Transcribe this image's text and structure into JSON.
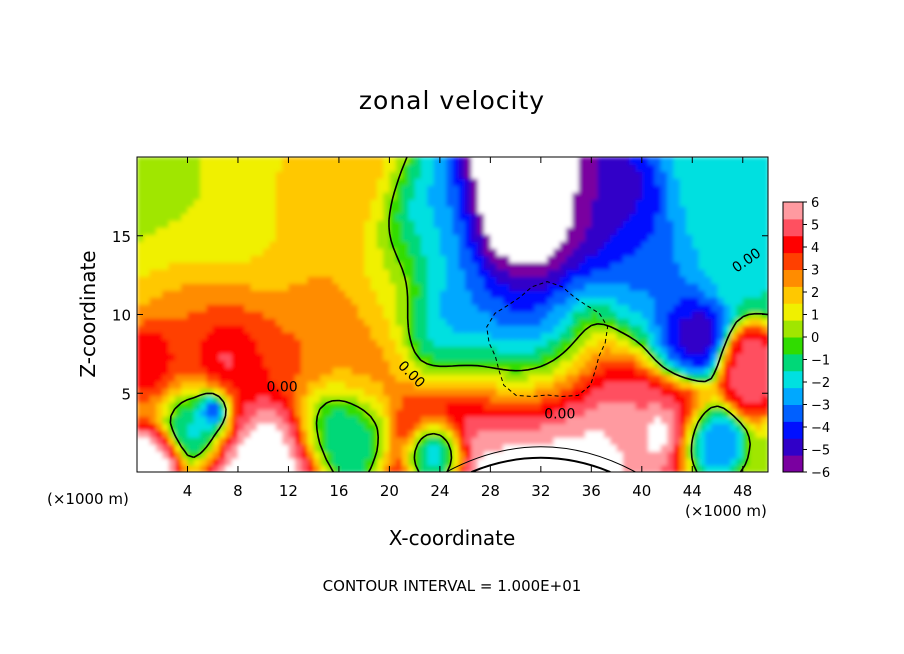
{
  "chart_data": {
    "type": "heatmap",
    "title": "zonal velocity",
    "xlabel": "X-coordinate",
    "ylabel": "Z-coordinate",
    "x_unit_label": "(×1000 m)",
    "x_ticks": [
      4,
      8,
      12,
      16,
      20,
      24,
      28,
      32,
      36,
      40,
      44,
      48
    ],
    "y_ticks": [
      5,
      10,
      15
    ],
    "xlim": [
      0,
      50
    ],
    "ylim": [
      0,
      20
    ],
    "colorbar": {
      "ticks": [
        6,
        5,
        4,
        3,
        2,
        1,
        0,
        -1,
        -2,
        -3,
        -4,
        -5,
        -6
      ],
      "range": [
        -6,
        6
      ],
      "colors": [
        "#7a00a0",
        "#3000c8",
        "#0010ff",
        "#0060ff",
        "#00a8ff",
        "#00e0e0",
        "#00d878",
        "#30dc00",
        "#a0e600",
        "#f0f000",
        "#ffc800",
        "#ff8c00",
        "#ff4000",
        "#ff0000",
        "#ff5060",
        "#ff9aa0"
      ]
    },
    "contour_labels": [
      "0.00",
      "0.00",
      "0.00",
      "0.00"
    ],
    "contour_interval_text": "CONTOUR INTERVAL = 1.000E+01",
    "regions": [
      {
        "x": 4,
        "y": 16,
        "r": 9,
        "v": 0.5
      },
      {
        "x": 12,
        "y": 17,
        "r": 7,
        "v": 1.8
      },
      {
        "x": 16,
        "y": 18,
        "r": 4,
        "v": 2.3
      },
      {
        "x": 4,
        "y": 9,
        "r": 5,
        "v": 4.2
      },
      {
        "x": 8,
        "y": 8,
        "r": 4,
        "v": 4.6
      },
      {
        "x": 14,
        "y": 9,
        "r": 5,
        "v": 3.2
      },
      {
        "x": 1,
        "y": 7.5,
        "r": 2,
        "v": 5.5
      },
      {
        "x": 7,
        "y": 7.5,
        "r": 2,
        "v": 5.8
      },
      {
        "x": 20,
        "y": 12,
        "r": 4,
        "v": 1.5
      },
      {
        "x": 18,
        "y": 7,
        "r": 3,
        "v": 2.5
      },
      {
        "x": 23,
        "y": 15,
        "r": 4,
        "v": -2.5
      },
      {
        "x": 25,
        "y": 10,
        "r": 4,
        "v": -3.5
      },
      {
        "x": 31,
        "y": 16,
        "r": 5,
        "v": -8
      },
      {
        "x": 31,
        "y": 8,
        "r": 5,
        "v": -8
      },
      {
        "x": 37,
        "y": 16,
        "r": 4,
        "v": -5
      },
      {
        "x": 40,
        "y": 12,
        "r": 4,
        "v": -3.5
      },
      {
        "x": 43.5,
        "y": 8.5,
        "r": 2.5,
        "v": -5.5
      },
      {
        "x": 47,
        "y": 16,
        "r": 4,
        "v": -2
      },
      {
        "x": 48.5,
        "y": 6.5,
        "r": 2,
        "v": 5
      },
      {
        "x": 5,
        "y": 3.5,
        "r": 2.5,
        "v": -3
      },
      {
        "x": 6,
        "y": 4,
        "r": 1,
        "v": -8
      },
      {
        "x": 16,
        "y": 3,
        "r": 3,
        "v": -2
      },
      {
        "x": 32,
        "y": 2.6,
        "r": 9,
        "v": 4.5
      },
      {
        "x": 32,
        "y": 1.2,
        "r": 7,
        "v": 9
      },
      {
        "x": 42,
        "y": 3,
        "r": 3,
        "v": 5
      },
      {
        "x": 41.5,
        "y": 2.5,
        "r": 1.5,
        "v": 8
      },
      {
        "x": 45,
        "y": 2,
        "r": 2,
        "v": -4
      },
      {
        "x": 10,
        "y": 0.5,
        "r": 4,
        "v": 7
      },
      {
        "x": 1,
        "y": 0.5,
        "r": 2,
        "v": 7
      },
      {
        "x": 24,
        "y": 1,
        "r": 2,
        "v": -5
      }
    ]
  }
}
